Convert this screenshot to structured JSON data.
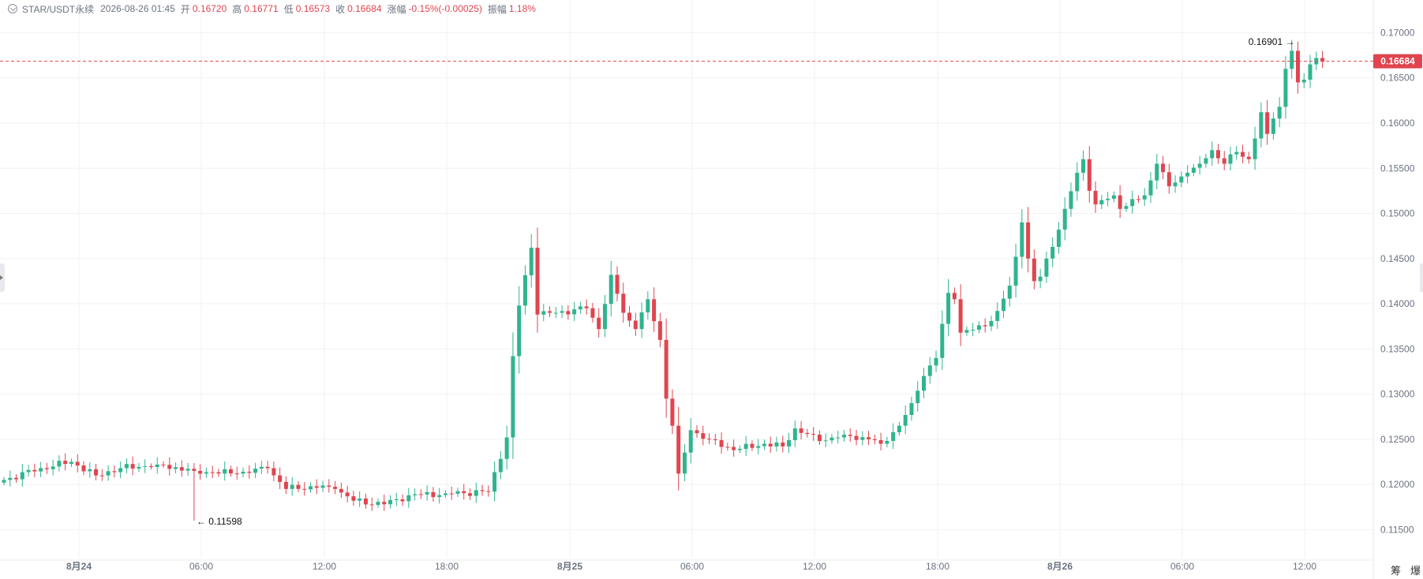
{
  "header": {
    "symbol": "STAR/USDT永续",
    "datetime": "2026-08-26 01:45",
    "open_label": "开",
    "open": "0.16720",
    "high_label": "高",
    "high": "0.16771",
    "low_label": "低",
    "low": "0.16573",
    "close_label": "收",
    "close": "0.16684",
    "change_label": "涨幅",
    "change": "-0.15%(-0.00025)",
    "amplitude_label": "振幅",
    "amplitude": "1.18%"
  },
  "colors": {
    "up": "#2fb48e",
    "down": "#e0454f",
    "grid": "#f1f2f4",
    "axis_text": "#6b7280"
  },
  "bottom_icons": [
    "筹",
    "爆"
  ],
  "chart_data": {
    "type": "candlestick",
    "x_axis_type": "time",
    "interval": "15m",
    "x_ticks": [
      "8月24",
      "06:00",
      "12:00",
      "18:00",
      "8月25",
      "06:00",
      "12:00",
      "18:00",
      "8月26",
      "06:00",
      "12:00"
    ],
    "x_tick_bold": [
      true,
      false,
      false,
      false,
      true,
      false,
      false,
      false,
      true,
      false,
      false
    ],
    "y_ticks": [
      "0.17000",
      "0.16500",
      "0.16000",
      "0.15500",
      "0.15000",
      "0.14500",
      "0.14000",
      "0.13500",
      "0.13000",
      "0.12500",
      "0.12000",
      "0.11500"
    ],
    "ylim": [
      0.1125,
      0.1717
    ],
    "time_range": [
      "2026-08-24 00:00",
      "2026-08-26 01:45"
    ],
    "last_price": "0.16684",
    "max_annotation": "0.16901",
    "min_annotation": "0.11598",
    "waypoints": [
      [
        0,
        0.1205
      ],
      [
        6,
        0.1218
      ],
      [
        11,
        0.1225
      ],
      [
        15,
        0.121
      ],
      [
        19,
        0.1218
      ],
      [
        25,
        0.1222
      ],
      [
        31,
        0.1215
      ],
      [
        38,
        0.1212
      ],
      [
        43,
        0.1218
      ],
      [
        46,
        0.1195
      ],
      [
        50,
        0.1198
      ],
      [
        54,
        0.1195
      ],
      [
        57,
        0.1182
      ],
      [
        62,
        0.1178
      ],
      [
        66,
        0.1188
      ],
      [
        72,
        0.119
      ],
      [
        79,
        0.1192
      ],
      [
        82,
        0.1252
      ],
      [
        83,
        0.1342
      ],
      [
        84,
        0.1398
      ],
      [
        86,
        0.1462
      ],
      [
        87,
        0.1388
      ],
      [
        90,
        0.139
      ],
      [
        95,
        0.1395
      ],
      [
        97,
        0.1372
      ],
      [
        99,
        0.1432
      ],
      [
        101,
        0.139
      ],
      [
        103,
        0.1372
      ],
      [
        105,
        0.1405
      ],
      [
        107,
        0.136
      ],
      [
        108,
        0.1295
      ],
      [
        109,
        0.1265
      ],
      [
        110,
        0.1212
      ],
      [
        112,
        0.126
      ],
      [
        115,
        0.125
      ],
      [
        119,
        0.1238
      ],
      [
        124,
        0.1245
      ],
      [
        127,
        0.1242
      ],
      [
        129,
        0.1262
      ],
      [
        133,
        0.1248
      ],
      [
        137,
        0.1255
      ],
      [
        141,
        0.125
      ],
      [
        143,
        0.1245
      ],
      [
        146,
        0.1265
      ],
      [
        148,
        0.129
      ],
      [
        150,
        0.132
      ],
      [
        152,
        0.134
      ],
      [
        154,
        0.1412
      ],
      [
        155,
        0.1405
      ],
      [
        156,
        0.1368
      ],
      [
        160,
        0.1375
      ],
      [
        162,
        0.1392
      ],
      [
        164,
        0.142
      ],
      [
        165,
        0.1452
      ],
      [
        166,
        0.149
      ],
      [
        167,
        0.145
      ],
      [
        168,
        0.1425
      ],
      [
        169,
        0.143
      ],
      [
        170,
        0.145
      ],
      [
        172,
        0.1482
      ],
      [
        173,
        0.1505
      ],
      [
        175,
        0.1545
      ],
      [
        176,
        0.156
      ],
      [
        177,
        0.1525
      ],
      [
        178,
        0.151
      ],
      [
        181,
        0.152
      ],
      [
        182,
        0.1505
      ],
      [
        186,
        0.152
      ],
      [
        188,
        0.1555
      ],
      [
        190,
        0.153
      ],
      [
        193,
        0.1545
      ],
      [
        195,
        0.1555
      ],
      [
        197,
        0.157
      ],
      [
        199,
        0.1555
      ],
      [
        201,
        0.1568
      ],
      [
        203,
        0.156
      ],
      [
        205,
        0.1612
      ],
      [
        206,
        0.1588
      ],
      [
        207,
        0.1605
      ],
      [
        208,
        0.1618
      ],
      [
        209,
        0.166
      ],
      [
        210,
        0.168
      ],
      [
        211,
        0.1645
      ],
      [
        212,
        0.1648
      ],
      [
        213,
        0.1665
      ],
      [
        214,
        0.1672
      ],
      [
        215,
        0.1668
      ]
    ],
    "title": "",
    "xlabel": "",
    "ylabel": "",
    "grid": true
  }
}
